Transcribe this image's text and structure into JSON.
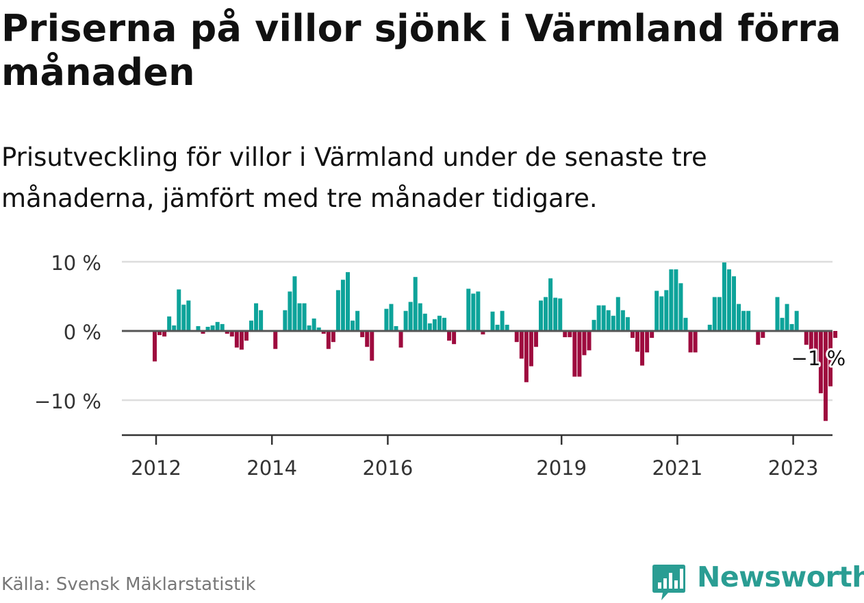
{
  "title": "Priserna på villor sjönk i Värmland förra månaden",
  "subtitle": "Prisutveckling för villor i Värmland under de senaste tre månaderna, jämfört med tre månader tidigare.",
  "source": "Källa: Svensk Mäklarstatistik",
  "brand": {
    "name": "Newsworthy",
    "color": "#2a9d93"
  },
  "colors": {
    "positive": "#0da39a",
    "negative": "#9e0b3e",
    "zero_line": "#555555",
    "grid": "#dddddd"
  },
  "chart_data": {
    "type": "bar",
    "title": "Priserna på villor sjönk i Värmland förra månaden",
    "subtitle": "Prisutveckling för villor i Värmland under de senaste tre månaderna, jämfört med tre månader tidigare.",
    "xlabel": "",
    "ylabel": "",
    "unit": "%",
    "ylim": [
      -15,
      10
    ],
    "grid": true,
    "yticks": [
      {
        "value": 10,
        "label": "10 %"
      },
      {
        "value": 0,
        "label": "0 %"
      },
      {
        "value": -10,
        "label": "−10 %"
      }
    ],
    "xticks": [
      {
        "index": 0,
        "label": "2012"
      },
      {
        "index": 24,
        "label": "2014"
      },
      {
        "index": 48,
        "label": "2016"
      },
      {
        "index": 84,
        "label": "2019"
      },
      {
        "index": 108,
        "label": "2021"
      },
      {
        "index": 132,
        "label": "2023"
      }
    ],
    "annotation": {
      "index": 133,
      "label": "−1 %"
    },
    "start": "2012-01",
    "values": [
      -4.4,
      -0.6,
      -0.8,
      2.1,
      0.8,
      6.0,
      3.8,
      4.4,
      0,
      0.7,
      -0.4,
      0.6,
      0.8,
      1.3,
      1.0,
      -0.4,
      -0.8,
      -2.4,
      -2.7,
      -1.4,
      1.5,
      4.0,
      3.0,
      0,
      0,
      -2.6,
      0,
      3.0,
      5.7,
      7.9,
      4.0,
      4.0,
      0.8,
      1.8,
      0.5,
      -0.4,
      -2.6,
      -1.6,
      5.9,
      7.4,
      8.5,
      1.5,
      2.9,
      -0.9,
      -2.3,
      -4.3,
      0,
      0,
      3.2,
      3.9,
      0.7,
      -2.4,
      2.9,
      4.2,
      7.8,
      4.0,
      2.5,
      1.1,
      1.7,
      2.2,
      1.9,
      -1.4,
      -1.9,
      0,
      0,
      6.1,
      5.4,
      5.7,
      -0.5,
      0,
      2.8,
      0.9,
      2.9,
      0.9,
      0,
      -1.6,
      -4.0,
      -7.4,
      -5.1,
      -2.3,
      4.4,
      4.9,
      7.6,
      4.8,
      4.7,
      -0.9,
      -0.9,
      -6.6,
      -6.6,
      -3.5,
      -2.8,
      1.6,
      3.7,
      3.7,
      3.0,
      2.2,
      4.9,
      3.0,
      2.0,
      -1.0,
      -3.0,
      -5.0,
      -3.1,
      -1.0,
      5.8,
      5.0,
      5.9,
      8.9,
      8.9,
      6.9,
      1.9,
      -3.1,
      -3.1,
      0,
      0,
      0.9,
      4.9,
      4.9,
      9.9,
      8.9,
      7.9,
      3.9,
      2.9,
      2.9,
      0,
      -2.0,
      -1.0,
      0,
      0,
      4.9,
      1.9,
      3.9,
      1.0,
      2.9,
      0,
      -2.0,
      -3.0,
      -5.0,
      -9.0,
      -13.0,
      -8.0,
      -1.0
    ]
  }
}
